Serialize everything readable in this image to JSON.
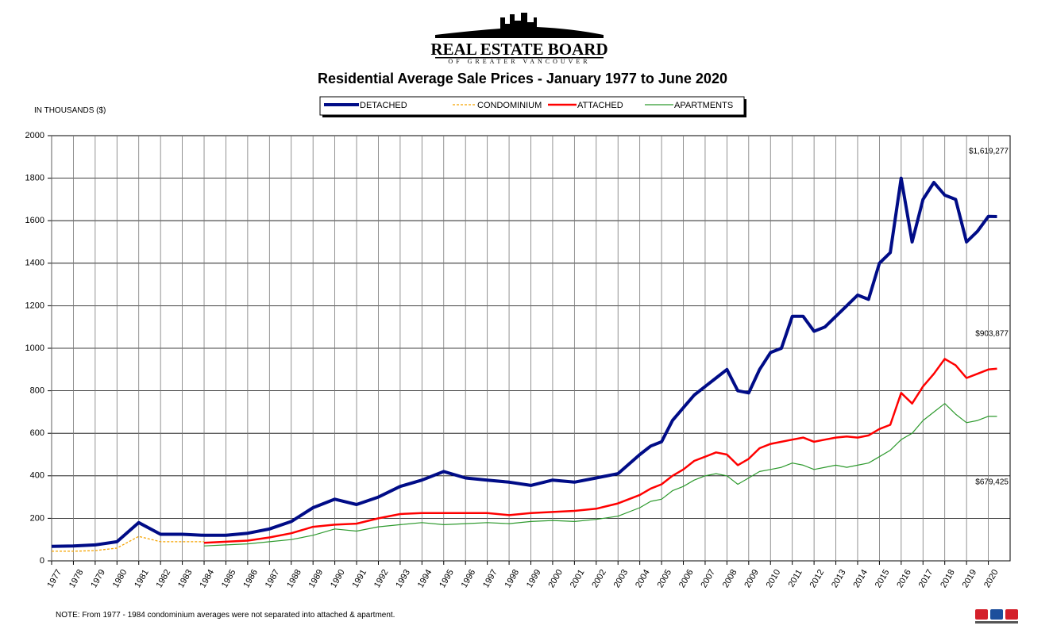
{
  "header": {
    "logo_name": "REAL ESTATE BOARD",
    "logo_sub": "OF GREATER VANCOUVER"
  },
  "chart_data": {
    "type": "line",
    "title": "Residential Average Sale Prices  -  January 1977 to June 2020",
    "y_label": "IN THOUSANDS ($)",
    "note": "NOTE:  From 1977 - 1984 condominium averages were not separated into attached & apartment.",
    "grid": true,
    "xlim": [
      1977,
      2021
    ],
    "xticks": [
      1977,
      1978,
      1979,
      1980,
      1981,
      1982,
      1983,
      1984,
      1985,
      1986,
      1987,
      1988,
      1989,
      1990,
      1991,
      1992,
      1993,
      1994,
      1995,
      1996,
      1997,
      1998,
      1999,
      2000,
      2001,
      2002,
      2003,
      2004,
      2005,
      2006,
      2007,
      2008,
      2009,
      2010,
      2011,
      2012,
      2013,
      2014,
      2015,
      2016,
      2017,
      2018,
      2019,
      2020
    ],
    "ylim": [
      0,
      2000
    ],
    "yticks": [
      0,
      200,
      400,
      600,
      800,
      1000,
      1200,
      1400,
      1600,
      1800,
      2000
    ],
    "x": [
      1977,
      1978,
      1979,
      1980,
      1981,
      1982,
      1983,
      1984,
      1985,
      1986,
      1987,
      1988,
      1989,
      1990,
      1991,
      1992,
      1993,
      1994,
      1995,
      1996,
      1997,
      1998,
      1999,
      2000,
      2001,
      2002,
      2003,
      2004,
      2004.5,
      2005,
      2005.5,
      2006,
      2006.5,
      2007,
      2007.5,
      2008,
      2008.5,
      2009,
      2009.5,
      2010,
      2010.5,
      2011,
      2011.5,
      2012,
      2012.5,
      2013,
      2013.5,
      2014,
      2014.5,
      2015,
      2015.5,
      2016,
      2016.5,
      2017,
      2017.5,
      2018,
      2018.5,
      2019,
      2019.5,
      2020,
      2020.4
    ],
    "series": [
      {
        "name": "DETACHED",
        "color": "#000c87",
        "end_label": "$1,619,277",
        "values": [
          68,
          70,
          75,
          90,
          180,
          125,
          125,
          120,
          120,
          130,
          150,
          185,
          250,
          290,
          265,
          300,
          350,
          380,
          420,
          390,
          380,
          370,
          355,
          380,
          370,
          390,
          410,
          500,
          540,
          560,
          660,
          720,
          780,
          820,
          860,
          900,
          800,
          790,
          900,
          980,
          1000,
          1150,
          1150,
          1080,
          1100,
          1150,
          1200,
          1250,
          1230,
          1400,
          1450,
          1800,
          1500,
          1700,
          1780,
          1720,
          1700,
          1500,
          1550,
          1620,
          1619.277
        ]
      },
      {
        "name": "CONDOMINIUM",
        "color": "#f5a300",
        "values": [
          45,
          45,
          48,
          60,
          115,
          90,
          90,
          90,
          null,
          null,
          null,
          null,
          null,
          null,
          null,
          null,
          null,
          null,
          null,
          null,
          null,
          null,
          null,
          null,
          null,
          null,
          null,
          null,
          null,
          null,
          null,
          null,
          null,
          null,
          null,
          null,
          null,
          null,
          null,
          null,
          null,
          null,
          null,
          null,
          null,
          null,
          null,
          null,
          null,
          null,
          null,
          null,
          null,
          null,
          null,
          null,
          null,
          null,
          null,
          null,
          null
        ]
      },
      {
        "name": "ATTACHED",
        "color": "#ff0000",
        "end_label": "$903,877",
        "values": [
          null,
          null,
          null,
          null,
          null,
          null,
          null,
          85,
          90,
          95,
          110,
          130,
          160,
          170,
          175,
          200,
          220,
          225,
          225,
          225,
          225,
          215,
          225,
          230,
          235,
          245,
          270,
          310,
          340,
          360,
          400,
          430,
          470,
          490,
          510,
          500,
          450,
          480,
          530,
          550,
          560,
          570,
          580,
          560,
          570,
          580,
          585,
          580,
          590,
          620,
          640,
          790,
          740,
          820,
          880,
          950,
          920,
          860,
          880,
          900,
          903.877
        ]
      },
      {
        "name": "APARTMENTS",
        "color": "#2e9a2e",
        "end_label": "$679,425",
        "values": [
          null,
          null,
          null,
          null,
          null,
          null,
          null,
          70,
          75,
          80,
          90,
          100,
          120,
          150,
          140,
          160,
          170,
          180,
          170,
          175,
          180,
          175,
          185,
          190,
          185,
          195,
          210,
          250,
          280,
          290,
          330,
          350,
          380,
          400,
          410,
          400,
          360,
          390,
          420,
          430,
          440,
          460,
          450,
          430,
          440,
          450,
          440,
          450,
          460,
          490,
          520,
          570,
          600,
          660,
          700,
          740,
          690,
          650,
          660,
          680,
          679.425
        ]
      }
    ]
  }
}
